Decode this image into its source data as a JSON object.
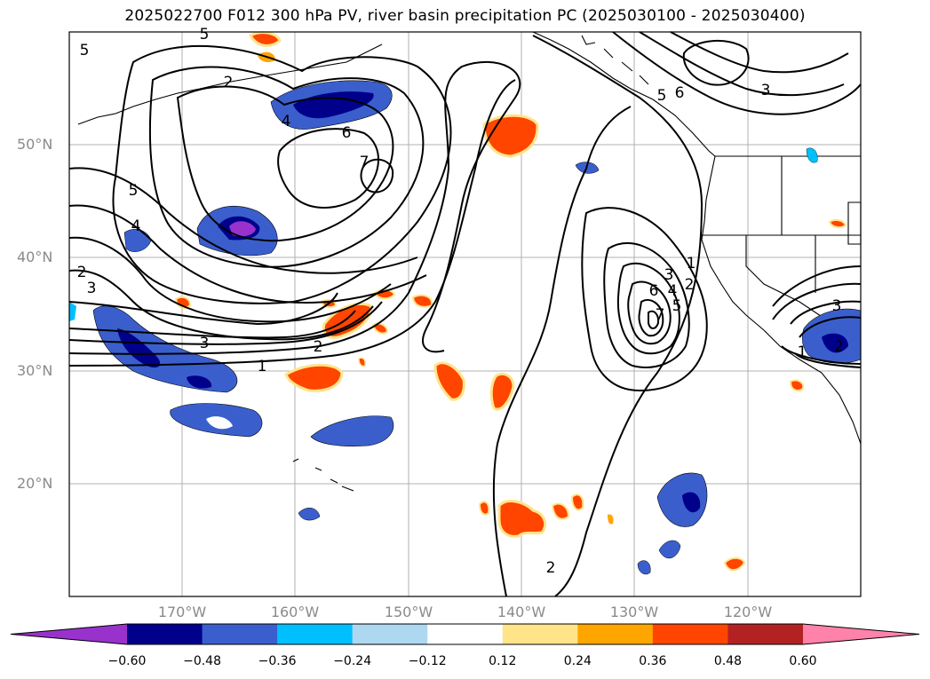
{
  "title": "2025022700 F012 300 hPa PV, river basin precipitation PC (2025030100 - 2025030400)",
  "lat_labels": [
    "50°N",
    "40°N",
    "30°N",
    "20°N"
  ],
  "lon_labels": [
    "170°W",
    "160°W",
    "150°W",
    "140°W",
    "130°W",
    "120°W"
  ],
  "contour_labels": [
    "5",
    "2",
    "4",
    "6",
    "7",
    "5",
    "4",
    "2",
    "3",
    "3",
    "2",
    "1",
    "6",
    "5",
    "3",
    "1",
    "2",
    "3",
    "4",
    "5",
    "6",
    "7",
    "2",
    "3",
    "2",
    "1",
    "5"
  ],
  "colorbar": {
    "ticks": [
      "−0.60",
      "−0.48",
      "−0.36",
      "−0.24",
      "−0.12",
      "0.12",
      "0.24",
      "0.36",
      "0.48",
      "0.60"
    ],
    "colors": [
      "#9932cc",
      "#00008b",
      "#3a5fcd",
      "#00bfff",
      "#add8f0",
      "#ffffff",
      "#ffe48a",
      "#ffa500",
      "#ff4500",
      "#b22222",
      "#ff82ab"
    ]
  },
  "legend_colors": {
    "neg_strong": "#9932cc",
    "neg_dark": "#00008b",
    "neg_mid": "#3a5fcd",
    "neg_light": "#00bfff",
    "neg_pale": "#add8f0",
    "pos_pale": "#ffe48a",
    "pos_light": "#ffa500",
    "pos_mid": "#ff4500"
  }
}
